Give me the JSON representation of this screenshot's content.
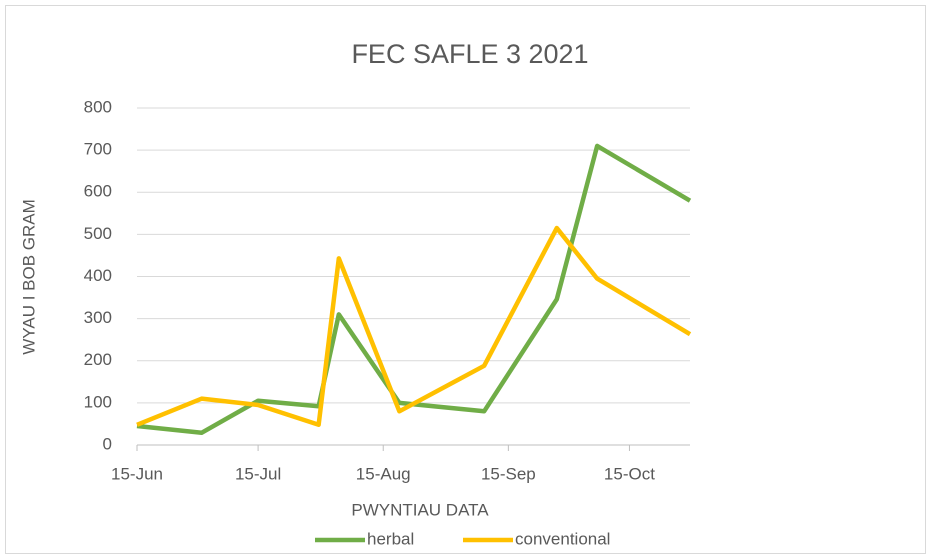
{
  "chart_data": {
    "type": "line",
    "title": "FEC SAFLE 3 2021",
    "y_label": "WYAU I BOB GRAM",
    "x_label": "PWYNTIAU DATA",
    "x": [
      166,
      182,
      196,
      211,
      216,
      231,
      252,
      270,
      280,
      303
    ],
    "series": [
      {
        "name": "herbal",
        "color": "#70ad47",
        "values": [
          45,
          29,
          105,
          92,
          310,
          100,
          80,
          346,
          710,
          580
        ]
      },
      {
        "name": "conventional",
        "color": "#ffc000",
        "values": [
          48,
          110,
          95,
          48,
          443,
          80,
          188,
          515,
          395,
          263
        ]
      }
    ],
    "xlim": [
      166,
      303
    ],
    "xticks": [
      {
        "value": 166,
        "label": "15-Jun"
      },
      {
        "value": 196,
        "label": "15-Jul"
      },
      {
        "value": 227,
        "label": "15-Aug"
      },
      {
        "value": 258,
        "label": "15-Sep"
      },
      {
        "value": 288,
        "label": "15-Oct"
      }
    ],
    "ylim": [
      0,
      800
    ],
    "yticks": [
      0,
      100,
      200,
      300,
      400,
      500,
      600,
      700,
      800
    ],
    "grid": true,
    "legend": "bottom"
  }
}
